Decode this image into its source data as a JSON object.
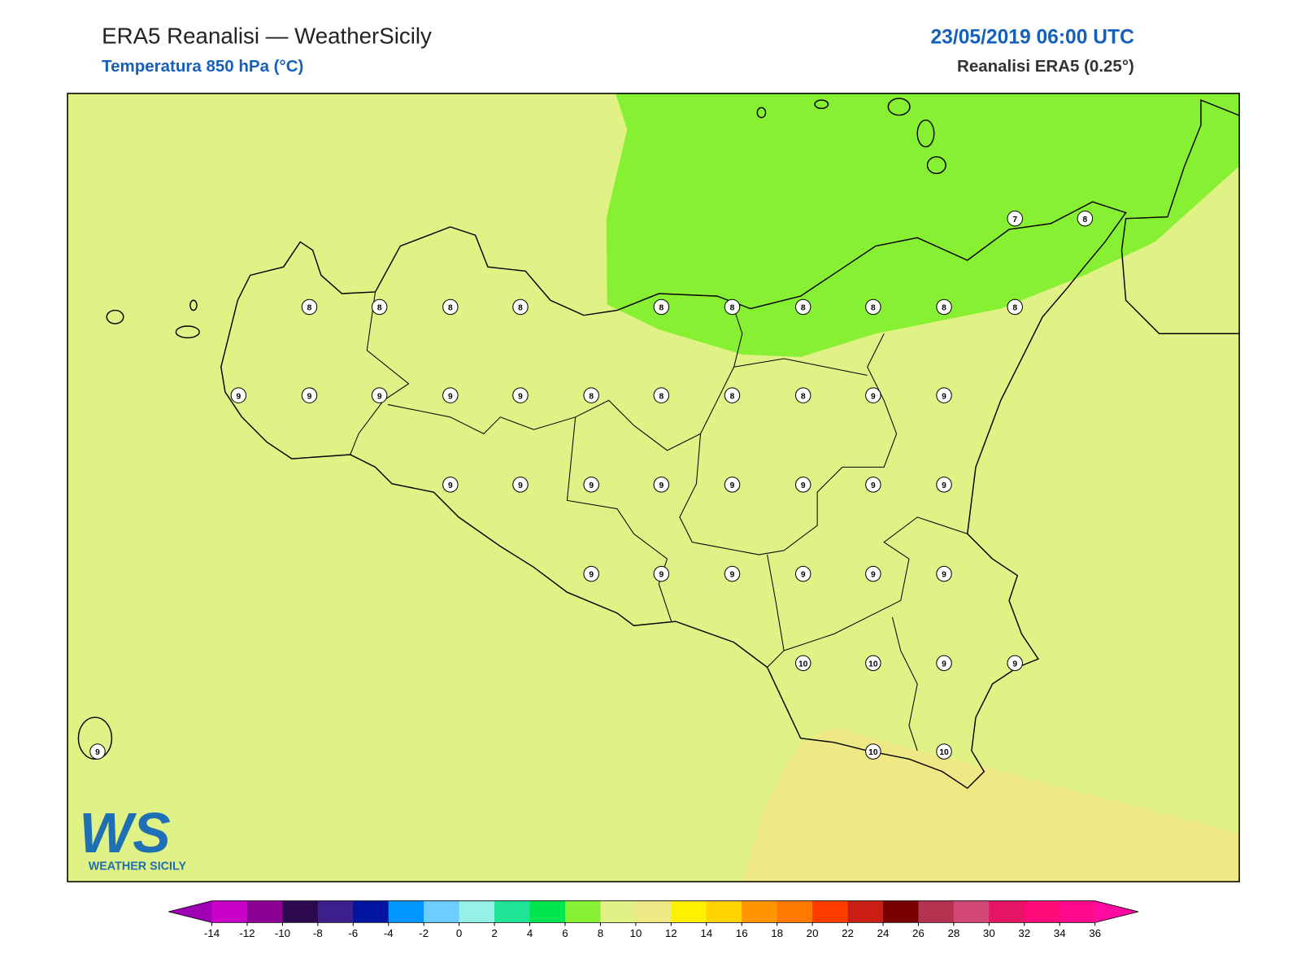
{
  "header": {
    "title": "ERA5 Reanalisi — WeatherSicily",
    "subtitle": "Temperatura 850 hPa (°C)",
    "date": "23/05/2019 06:00 UTC",
    "source": "Reanalisi ERA5 (0.25°)"
  },
  "point_values": [
    7,
    8,
    8,
    8,
    8,
    8,
    8,
    8,
    8,
    8,
    8,
    8,
    9,
    9,
    9,
    9,
    9,
    8,
    8,
    8,
    8,
    9,
    9,
    9,
    9,
    9,
    9,
    9,
    9,
    9,
    9,
    9,
    9,
    9,
    9,
    9,
    9,
    10,
    10,
    9,
    9,
    9,
    10,
    10
  ],
  "logo": {
    "mark": "WS",
    "name": "WEATHER SICILY"
  },
  "colorbar": {
    "ticks": [
      -14,
      -12,
      -10,
      -8,
      -6,
      -4,
      -2,
      0,
      2,
      4,
      6,
      8,
      10,
      12,
      14,
      16,
      18,
      20,
      22,
      24,
      26,
      28,
      30,
      32,
      34,
      36
    ],
    "colors": [
      "#a000b4",
      "#c800c8",
      "#8c0096",
      "#2d0a50",
      "#3c1e8c",
      "#0014a0",
      "#0096ff",
      "#6ecdff",
      "#96f0e6",
      "#1ee696",
      "#00e650",
      "#88f032",
      "#e0f285",
      "#eee885",
      "#fff000",
      "#ffd200",
      "#ff9600",
      "#ff7800",
      "#ff3c00",
      "#c81e14",
      "#780000",
      "#b43250",
      "#d24678",
      "#e61464",
      "#ff0a78",
      "#ff0a8c",
      "#ff0aa0"
    ]
  }
}
